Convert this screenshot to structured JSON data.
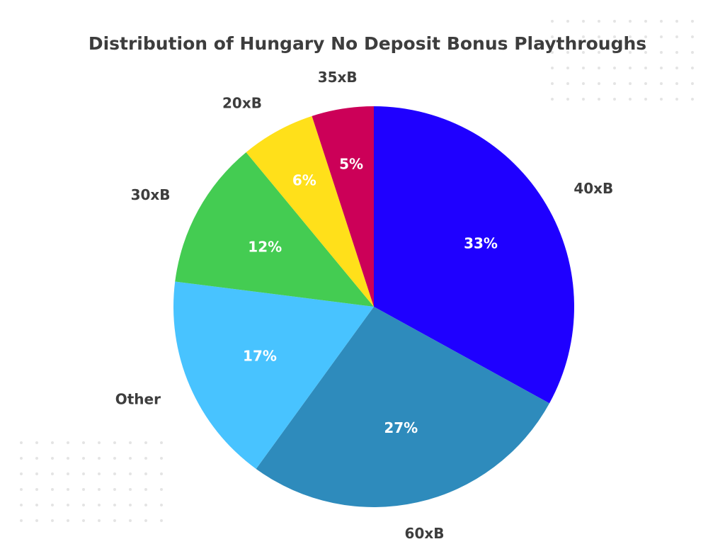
{
  "chart_data": {
    "type": "pie",
    "title": "Distribution of Hungary No Deposit Bonus Playthroughs",
    "slices": [
      {
        "label": "40xB",
        "value": 33,
        "display": "33%",
        "color": "#1f00ff"
      },
      {
        "label": "60xB",
        "value": 27,
        "display": "27%",
        "color": "#2e8bbc"
      },
      {
        "label": "Other",
        "value": 17,
        "display": "17%",
        "color": "#48c3ff"
      },
      {
        "label": "30xB",
        "value": 12,
        "display": "12%",
        "color": "#44cc52"
      },
      {
        "label": "20xB",
        "value": 6,
        "display": "6%",
        "color": "#ffe01a"
      },
      {
        "label": "35xB",
        "value": 5,
        "display": "5%",
        "color": "#cc0058"
      }
    ],
    "start_angle": "12 o'clock",
    "direction": "clockwise",
    "legend": "none"
  }
}
